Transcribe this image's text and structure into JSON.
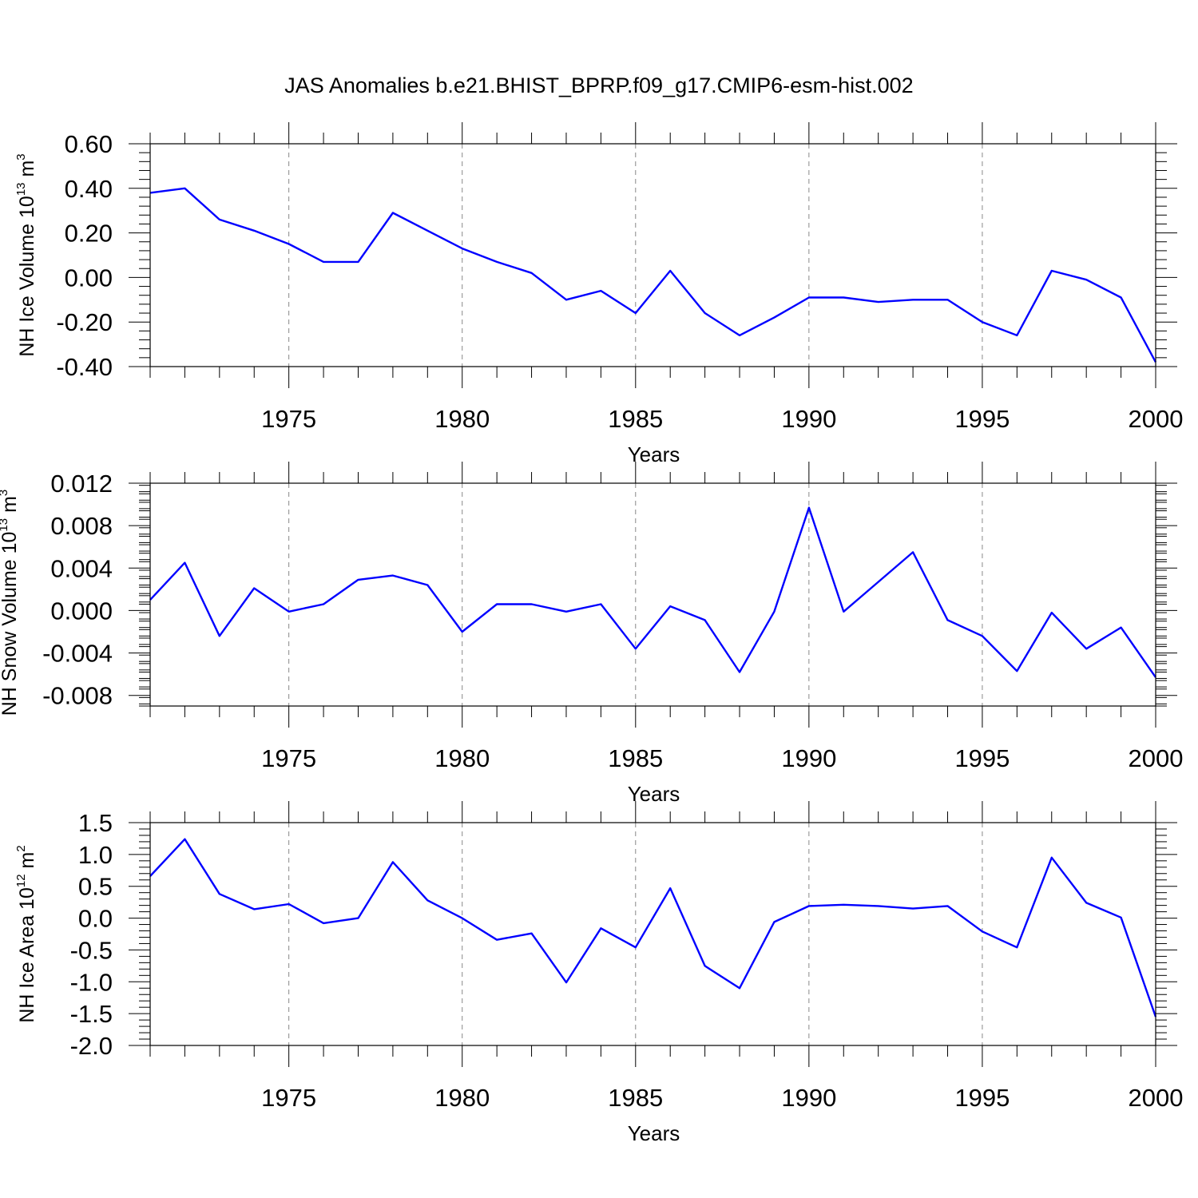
{
  "chart_data": [
    {
      "type": "line",
      "title": "JAS Anomalies b.e21.BHIST_BPRP.f09_g17.CMIP6-esm-hist.002",
      "ylabel": "NH Ice Volume 10",
      "ylabel_exp": "13",
      "ylabel_unit": " m",
      "ylabel_unit_exp": "3",
      "xlabel": "Years",
      "xlim": [
        1971,
        2000
      ],
      "ylim": [
        -0.4,
        0.6
      ],
      "yticks": [
        -0.4,
        -0.2,
        0.0,
        0.2,
        0.4,
        0.6
      ],
      "ytick_labels": [
        "-0.40",
        "-0.20",
        "0.00",
        "0.20",
        "0.40",
        "0.60"
      ],
      "xticks": [
        1975,
        1980,
        1985,
        1990,
        1995,
        2000
      ],
      "xtick_labels": [
        "1975",
        "1980",
        "1985",
        "1990",
        "1995",
        "2000"
      ],
      "x": [
        1971,
        1972,
        1973,
        1974,
        1975,
        1976,
        1977,
        1978,
        1979,
        1980,
        1981,
        1982,
        1983,
        1984,
        1985,
        1986,
        1987,
        1988,
        1989,
        1990,
        1991,
        1992,
        1993,
        1994,
        1995,
        1996,
        1997,
        1998,
        1999,
        2000
      ],
      "series": [
        {
          "name": "NH Ice Volume",
          "color": "#0000ff",
          "values": [
            0.38,
            0.4,
            0.26,
            0.21,
            0.15,
            0.07,
            0.07,
            0.29,
            0.21,
            0.13,
            0.07,
            0.02,
            -0.1,
            -0.06,
            -0.16,
            0.03,
            -0.16,
            -0.26,
            -0.18,
            -0.09,
            -0.09,
            -0.11,
            -0.1,
            -0.1,
            -0.2,
            -0.26,
            0.03,
            -0.01,
            -0.09,
            -0.38
          ]
        }
      ]
    },
    {
      "type": "line",
      "ylabel": "NH Snow Volume 10",
      "ylabel_exp": "13",
      "ylabel_unit": " m",
      "ylabel_unit_exp": "3",
      "xlabel": "Years",
      "xlim": [
        1971,
        2000
      ],
      "ylim": [
        -0.009,
        0.012
      ],
      "yticks": [
        -0.008,
        -0.004,
        0.0,
        0.004,
        0.008,
        0.012
      ],
      "ytick_labels": [
        "-0.008",
        "-0.004",
        "0.000",
        "0.004",
        "0.008",
        "0.012"
      ],
      "xticks": [
        1975,
        1980,
        1985,
        1990,
        1995,
        2000
      ],
      "xtick_labels": [
        "1975",
        "1980",
        "1985",
        "1990",
        "1995",
        "2000"
      ],
      "x": [
        1971,
        1972,
        1973,
        1974,
        1975,
        1976,
        1977,
        1978,
        1979,
        1980,
        1981,
        1982,
        1983,
        1984,
        1985,
        1986,
        1987,
        1988,
        1989,
        1990,
        1991,
        1992,
        1993,
        1994,
        1995,
        1996,
        1997,
        1998,
        1999,
        2000
      ],
      "series": [
        {
          "name": "NH Snow Volume",
          "color": "#0000ff",
          "values": [
            0.001,
            0.0045,
            -0.0024,
            0.0021,
            -0.0001,
            0.0006,
            0.0029,
            0.0033,
            0.0024,
            -0.002,
            0.0006,
            0.0006,
            -0.0001,
            0.0006,
            -0.0036,
            0.0004,
            -0.0009,
            -0.0058,
            -0.0001,
            0.0097,
            -0.0001,
            0.0027,
            0.0055,
            -0.0009,
            -0.0024,
            -0.0057,
            -0.0002,
            -0.0036,
            -0.0016,
            -0.0063
          ]
        }
      ]
    },
    {
      "type": "line",
      "ylabel": "NH Ice Area 10",
      "ylabel_exp": "12",
      "ylabel_unit": " m",
      "ylabel_unit_exp": "2",
      "xlabel": "Years",
      "xlim": [
        1971,
        2000
      ],
      "ylim": [
        -2.0,
        1.5
      ],
      "yticks": [
        -2.0,
        -1.5,
        -1.0,
        -0.5,
        0.0,
        0.5,
        1.0,
        1.5
      ],
      "ytick_labels": [
        "-2.0",
        "-1.5",
        "-1.0",
        "-0.5",
        "0.0",
        "0.5",
        "1.0",
        "1.5"
      ],
      "xticks": [
        1975,
        1980,
        1985,
        1990,
        1995,
        2000
      ],
      "xtick_labels": [
        "1975",
        "1980",
        "1985",
        "1990",
        "1995",
        "2000"
      ],
      "x": [
        1971,
        1972,
        1973,
        1974,
        1975,
        1976,
        1977,
        1978,
        1979,
        1980,
        1981,
        1982,
        1983,
        1984,
        1985,
        1986,
        1987,
        1988,
        1989,
        1990,
        1991,
        1992,
        1993,
        1994,
        1995,
        1996,
        1997,
        1998,
        1999,
        2000
      ],
      "series": [
        {
          "name": "NH Ice Area",
          "color": "#0000ff",
          "values": [
            0.66,
            1.24,
            0.38,
            0.14,
            0.22,
            -0.08,
            0.0,
            0.88,
            0.28,
            0.0,
            -0.34,
            -0.24,
            -1.01,
            -0.16,
            -0.46,
            0.47,
            -0.75,
            -1.1,
            -0.06,
            0.19,
            0.21,
            0.19,
            0.15,
            0.19,
            -0.21,
            -0.46,
            0.95,
            0.24,
            0.01,
            -1.55
          ]
        }
      ]
    }
  ]
}
